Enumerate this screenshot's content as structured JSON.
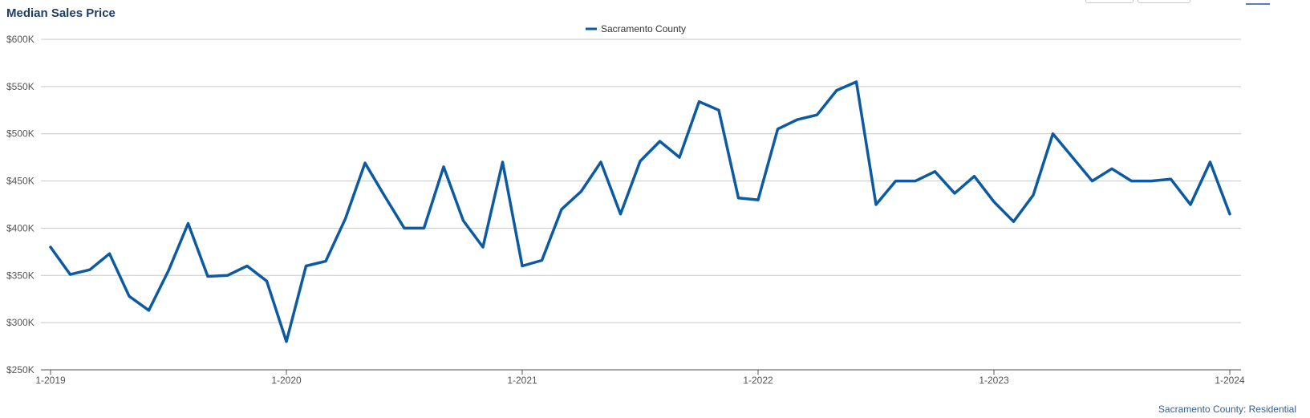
{
  "title": "Median Sales Price",
  "footer_note": "Sacramento County: Residential",
  "colors": {
    "series": "#0b5aa2",
    "title": "#1f3d63",
    "grid": "#c9c9c9",
    "axis": "#555555",
    "footer": "#2e5f95"
  },
  "toolbar": {
    "icons": [
      "button",
      "button",
      "chart-menu-icon"
    ]
  },
  "chart_data": {
    "type": "line",
    "title": "Median Sales Price",
    "xlabel": "",
    "ylabel": "",
    "ylim": [
      250000,
      600000
    ],
    "y_ticks": [
      250000,
      300000,
      350000,
      400000,
      450000,
      500000,
      550000,
      600000
    ],
    "y_tick_labels": [
      "$250K",
      "$300K",
      "$350K",
      "$400K",
      "$450K",
      "$500K",
      "$550K",
      "$600K"
    ],
    "x_tick_labels": [
      "1-2019",
      "1-2020",
      "1-2021",
      "1-2022",
      "1-2023",
      "1-2024"
    ],
    "grid": true,
    "legend": "top-center",
    "x": [
      "1-2019",
      "2-2019",
      "3-2019",
      "4-2019",
      "5-2019",
      "6-2019",
      "7-2019",
      "8-2019",
      "9-2019",
      "10-2019",
      "11-2019",
      "12-2019",
      "1-2020",
      "2-2020",
      "3-2020",
      "4-2020",
      "5-2020",
      "6-2020",
      "7-2020",
      "8-2020",
      "9-2020",
      "10-2020",
      "11-2020",
      "12-2020",
      "1-2021",
      "2-2021",
      "3-2021",
      "4-2021",
      "5-2021",
      "6-2021",
      "7-2021",
      "8-2021",
      "9-2021",
      "10-2021",
      "11-2021",
      "12-2021",
      "1-2022",
      "2-2022",
      "3-2022",
      "4-2022",
      "5-2022",
      "6-2022",
      "7-2022",
      "8-2022",
      "9-2022",
      "10-2022",
      "11-2022",
      "12-2022",
      "1-2023",
      "2-2023",
      "3-2023",
      "4-2023",
      "5-2023",
      "6-2023",
      "7-2023",
      "8-2023",
      "9-2023",
      "10-2023",
      "11-2023",
      "12-2023",
      "1-2024"
    ],
    "series": [
      {
        "name": "Sacramento County",
        "values": [
          380000,
          351000,
          356000,
          373000,
          328000,
          313000,
          355000,
          405000,
          349000,
          350000,
          360000,
          344000,
          280000,
          360000,
          365000,
          410000,
          469000,
          434000,
          400000,
          400000,
          465000,
          408000,
          380000,
          470000,
          360000,
          366000,
          420000,
          439000,
          470000,
          415000,
          471000,
          492000,
          475000,
          534000,
          525000,
          432000,
          430000,
          505000,
          515000,
          520000,
          546000,
          555000,
          425000,
          450000,
          450000,
          460000,
          437000,
          455000,
          428000,
          407000,
          435000,
          500000,
          475000,
          450000,
          463000,
          450000,
          450000,
          452000,
          425000,
          470000,
          415000
        ]
      }
    ]
  }
}
